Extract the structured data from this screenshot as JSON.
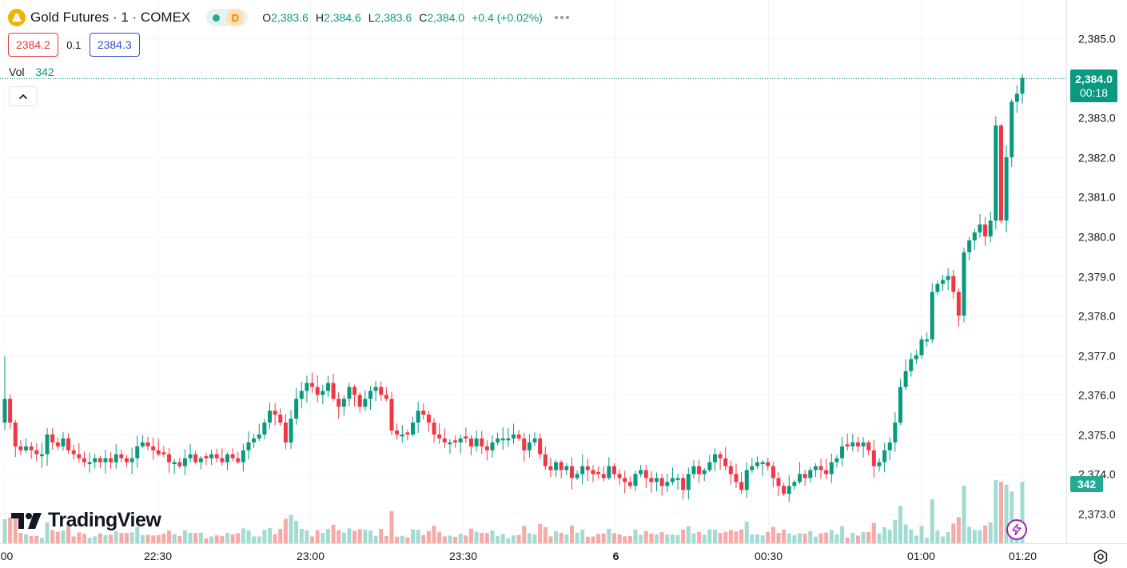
{
  "legend": {
    "symbol": "Gold Futures · 1 · COMEX",
    "delay_badge": "D",
    "ohlc": {
      "o_label": "O",
      "o_value": "2,383.6",
      "h_label": "H",
      "h_value": "2,384.6",
      "l_label": "L",
      "l_value": "2,383.6",
      "c_label": "C",
      "c_value": "2,384.0",
      "change": "+0.4 (+0.02%)"
    }
  },
  "quote": {
    "bid": "2384.2",
    "spread": "0.1",
    "ask": "2384.3"
  },
  "volume_legend": {
    "label": "Vol",
    "value": "342"
  },
  "last_price_tag": {
    "price": "2,384.0",
    "countdown": "00:18"
  },
  "volume_tag": "342",
  "brand": "TradingView",
  "colors": {
    "up": "#089981",
    "down": "#f23645",
    "vol_up": "#a2dbd1",
    "vol_down": "#f7a9a7",
    "accent": "#2962ff"
  },
  "icons": [
    "gold-logo-icon",
    "chevron-up-icon",
    "lightning-icon",
    "settings-icon",
    "more-dots-icon"
  ],
  "chart_data": {
    "type": "candlestick",
    "title": "Gold Futures · 1 · COMEX",
    "y_ticks": [
      "2,373.0",
      "2,374.0",
      "2,375.0",
      "2,376.0",
      "2,377.0",
      "2,378.0",
      "2,379.0",
      "2,380.0",
      "2,381.0",
      "2,382.0",
      "2,383.0",
      "2,384.0",
      "2,385.0"
    ],
    "y_range": [
      2372.0,
      2385.7
    ],
    "x_ticks": [
      {
        "label": ":00",
        "time": "22:00",
        "bold": false
      },
      {
        "label": "22:30",
        "time": "22:30",
        "bold": false
      },
      {
        "label": "23:00",
        "time": "23:00",
        "bold": false
      },
      {
        "label": "23:30",
        "time": "23:30",
        "bold": false
      },
      {
        "label": "6",
        "time": "00:00",
        "bold": true
      },
      {
        "label": "00:30",
        "time": "00:30",
        "bold": false
      },
      {
        "label": "01:00",
        "time": "01:00",
        "bold": false
      },
      {
        "label": "01:20",
        "time": "01:20",
        "bold": false
      }
    ],
    "time_start": "22:00",
    "time_end": "01:20",
    "last_price": 2384.0,
    "grid": true,
    "closes": [
      2375.9,
      2375.3,
      2374.7,
      2374.6,
      2374.7,
      2374.6,
      2374.5,
      2374.5,
      2375.0,
      2374.8,
      2374.7,
      2374.9,
      2374.6,
      2374.5,
      2374.4,
      2374.3,
      2374.3,
      2374.4,
      2374.3,
      2374.4,
      2374.3,
      2374.5,
      2374.4,
      2374.3,
      2374.4,
      2374.7,
      2374.8,
      2374.7,
      2374.6,
      2374.5,
      2374.5,
      2374.3,
      2374.3,
      2374.2,
      2374.4,
      2374.5,
      2374.3,
      2374.4,
      2374.4,
      2374.5,
      2374.4,
      2374.3,
      2374.5,
      2374.4,
      2374.3,
      2374.6,
      2374.8,
      2374.9,
      2375.0,
      2375.3,
      2375.6,
      2375.5,
      2375.3,
      2374.8,
      2375.4,
      2375.9,
      2376.1,
      2376.3,
      2376.2,
      2376.0,
      2376.1,
      2376.3,
      2375.9,
      2375.7,
      2375.9,
      2376.2,
      2376.0,
      2375.7,
      2375.9,
      2376.1,
      2376.2,
      2376.0,
      2375.9,
      2375.1,
      2375.0,
      2375.0,
      2375.0,
      2375.3,
      2375.6,
      2375.5,
      2375.3,
      2375.0,
      2374.9,
      2374.8,
      2374.8,
      2374.8,
      2374.9,
      2374.9,
      2374.7,
      2374.9,
      2374.7,
      2374.6,
      2374.8,
      2374.9,
      2374.9,
      2374.9,
      2375.0,
      2374.9,
      2374.6,
      2374.8,
      2374.9,
      2374.5,
      2374.2,
      2374.1,
      2374.3,
      2374.1,
      2374.2,
      2373.9,
      2374.0,
      2374.2,
      2374.1,
      2374.0,
      2374.0,
      2373.9,
      2374.2,
      2374.0,
      2373.9,
      2373.8,
      2373.7,
      2374.0,
      2374.1,
      2373.9,
      2373.8,
      2373.9,
      2373.7,
      2373.8,
      2373.9,
      2373.9,
      2373.6,
      2374.0,
      2374.2,
      2374.0,
      2374.1,
      2374.3,
      2374.5,
      2374.4,
      2374.2,
      2374.0,
      2373.8,
      2373.6,
      2374.1,
      2374.2,
      2374.3,
      2374.3,
      2374.2,
      2373.9,
      2373.7,
      2373.5,
      2373.7,
      2373.8,
      2374.0,
      2373.9,
      2374.1,
      2374.2,
      2374.1,
      2374.0,
      2374.3,
      2374.4,
      2374.7,
      2374.7,
      2374.8,
      2374.7,
      2374.8,
      2374.6,
      2374.2,
      2374.3,
      2374.6,
      2374.8,
      2375.3,
      2376.2,
      2376.6,
      2376.9,
      2377.0,
      2377.4,
      2377.4,
      2378.6,
      2378.8,
      2378.9,
      2379.0,
      2378.6,
      2378.0,
      2379.6,
      2379.9,
      2380.1,
      2380.3,
      2380.0,
      2380.4,
      2382.8,
      2380.4,
      2382.0,
      2383.4,
      2383.6,
      2384.0
    ],
    "volume_max_value": 342
  }
}
